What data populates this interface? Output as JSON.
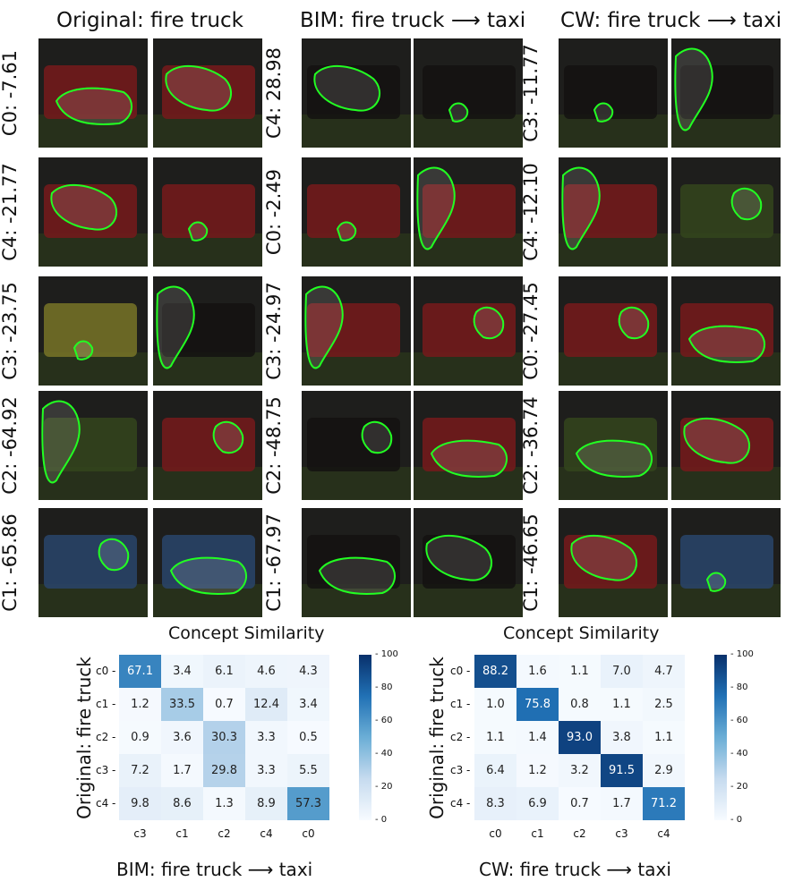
{
  "titles": {
    "original": "Original: fire truck",
    "bim": "BIM: fire truck ⟶ taxi",
    "cw": "CW: fire truck ⟶ taxi"
  },
  "row_labels": {
    "original": [
      "C0: -7.61",
      "C4: -21.77",
      "C3: -23.75",
      "C2: -64.92",
      "C1: -65.86"
    ],
    "bim": [
      "C4: 28.98",
      "C0: -2.49",
      "C3: -24.97",
      "C2: -48.75",
      "C1: -67.97"
    ],
    "cw": [
      "C3: -11.77",
      "C4: -12.10",
      "C0: -27.45",
      "C2: -36.74",
      "C1: -46.65"
    ]
  },
  "tile_colors": {
    "red_truck": "#b5272a",
    "yellow_truck": "#b9b33c",
    "dark_scene": "#1e1b1a",
    "grass": "#4f6b2c",
    "sky": "#3f6aa6",
    "contour": "#22ff22"
  },
  "chart_data": [
    {
      "type": "heatmap",
      "title": "Concept Similarity",
      "xlabel": "BIM: fire truck ⟶ taxi",
      "ylabel": "Original: fire truck",
      "x_categories": [
        "c3",
        "c1",
        "c2",
        "c4",
        "c0"
      ],
      "y_categories": [
        "c0",
        "c1",
        "c2",
        "c3",
        "c4"
      ],
      "values": [
        [
          67.1,
          3.4,
          6.1,
          4.6,
          4.3
        ],
        [
          1.2,
          33.5,
          0.7,
          12.4,
          3.4
        ],
        [
          0.9,
          3.6,
          30.3,
          3.3,
          0.5
        ],
        [
          7.2,
          1.7,
          29.8,
          3.3,
          5.5
        ],
        [
          9.8,
          8.6,
          1.3,
          8.9,
          57.3
        ]
      ],
      "colorbar_range": [
        0,
        100
      ],
      "colorbar_ticks": [
        "100",
        "80",
        "60",
        "40",
        "20",
        "0"
      ],
      "colormap": "Blues"
    },
    {
      "type": "heatmap",
      "title": "Concept Similarity",
      "xlabel": "CW: fire truck ⟶ taxi",
      "ylabel": "Original: fire truck",
      "x_categories": [
        "c0",
        "c1",
        "c2",
        "c3",
        "c4"
      ],
      "y_categories": [
        "c0",
        "c1",
        "c2",
        "c3",
        "c4"
      ],
      "values": [
        [
          88.2,
          1.6,
          1.1,
          7.0,
          4.7
        ],
        [
          1.0,
          75.8,
          0.8,
          1.1,
          2.5
        ],
        [
          1.1,
          1.4,
          93.0,
          3.8,
          1.1
        ],
        [
          6.4,
          1.2,
          3.2,
          91.5,
          2.9
        ],
        [
          8.3,
          6.9,
          0.7,
          1.7,
          71.2
        ]
      ],
      "colorbar_range": [
        0,
        100
      ],
      "colorbar_ticks": [
        "100",
        "80",
        "60",
        "40",
        "20",
        "0"
      ],
      "colormap": "Blues"
    }
  ]
}
